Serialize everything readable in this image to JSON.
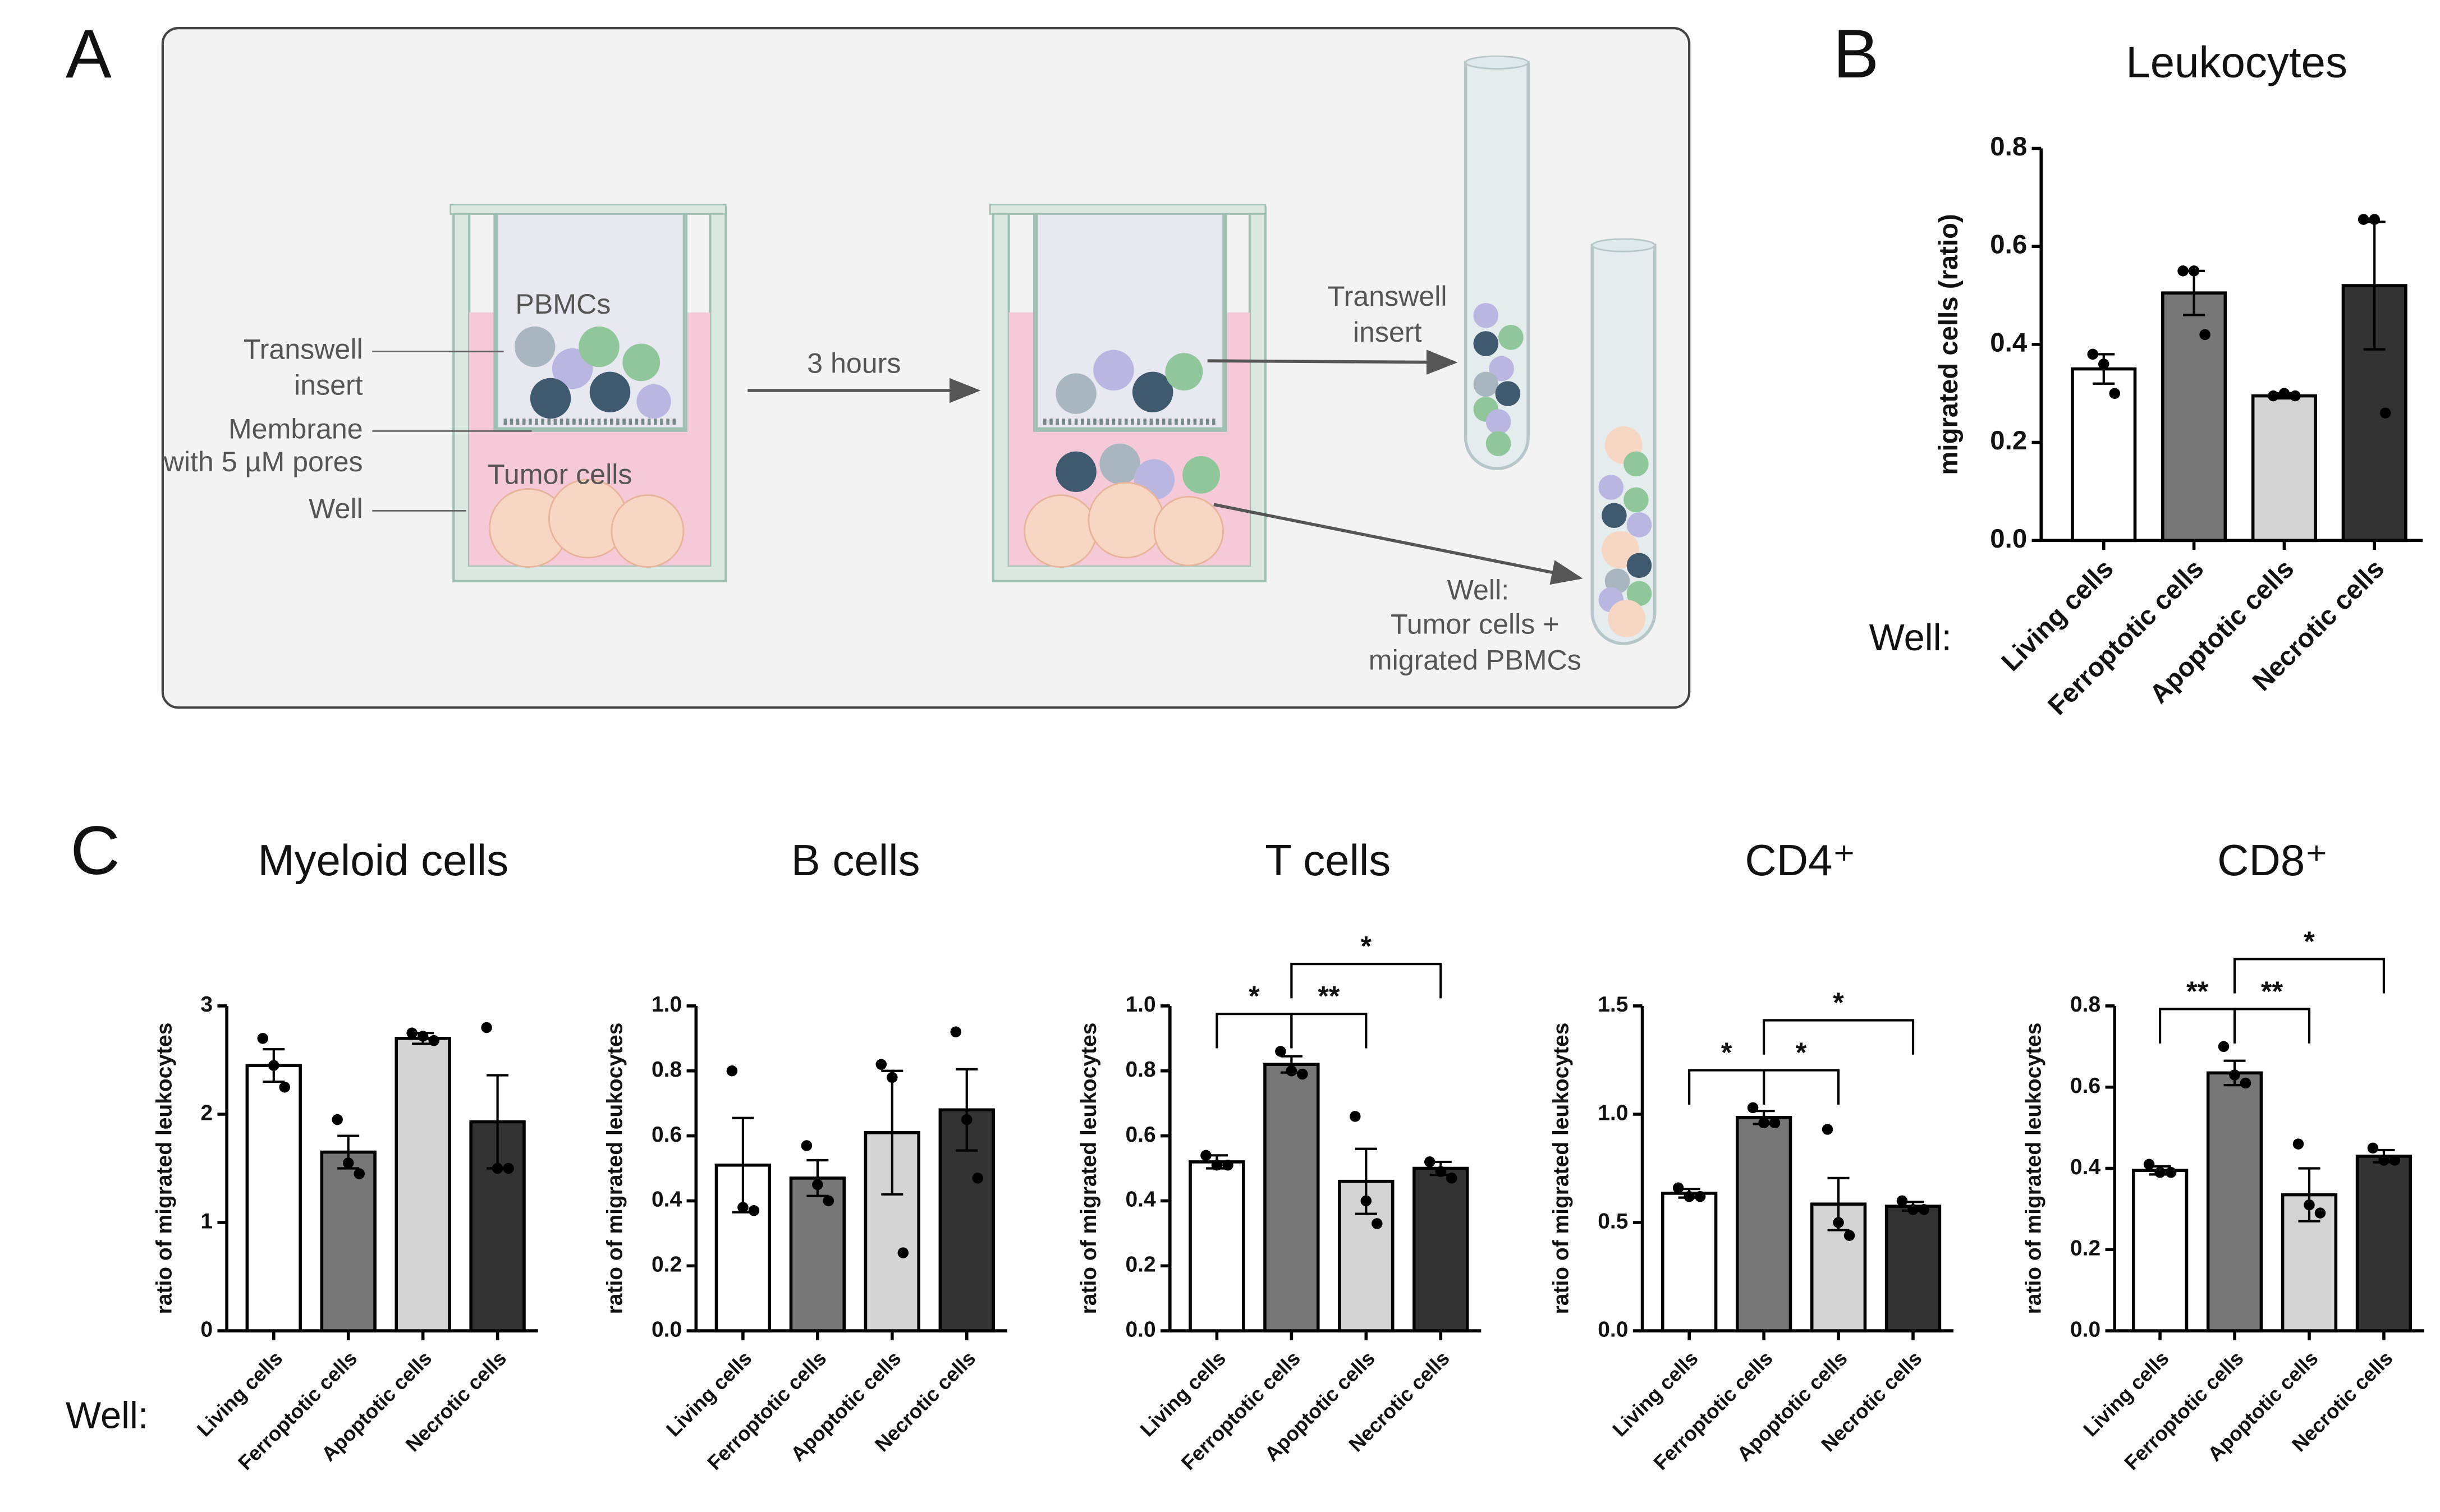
{
  "panel_labels": [
    "A",
    "B",
    "C"
  ],
  "diagram": {
    "pbmcs": "PBMCs",
    "transwell_insert": [
      "Transwell",
      "insert"
    ],
    "membrane": "Membrane",
    "pores": "with 5 µM pores",
    "tumor_cells": "Tumor cells",
    "well": "Well",
    "time": "3 hours",
    "transwell_tube": [
      "Transwell",
      "insert"
    ],
    "well_tube": [
      "Well:",
      "Tumor cells +",
      "migrated PBMCs"
    ]
  },
  "chart_data": [
    {
      "type": "bar",
      "title": "Leukocytes",
      "y_label": "migrated cells (ratio)",
      "x_label": "Well:",
      "categories": [
        "Living cells",
        "Ferroptotic cells",
        "Apoptotic cells",
        "Necrotic cells"
      ],
      "values": [
        0.35,
        0.505,
        0.295,
        0.52
      ],
      "errors": [
        0.03,
        0.045,
        0.005,
        0.13
      ],
      "points": [
        [
          0.38,
          0.36,
          0.3
        ],
        [
          0.55,
          0.55,
          0.42
        ],
        [
          0.295,
          0.3,
          0.295
        ],
        [
          0.655,
          0.655,
          0.26
        ]
      ],
      "colors": [
        "#ffffff",
        "#777777",
        "#d4d4d4",
        "#333333"
      ],
      "ylim": [
        0,
        0.8
      ],
      "yticks": [
        {
          "value": 0,
          "label": "0.0"
        },
        0.2,
        0.4,
        0.6,
        0.8
      ],
      "annotations": []
    },
    {
      "type": "bar",
      "title": "Myeloid cells",
      "y_label": "ratio of migrated leukocytes",
      "x_label": "Well:",
      "categories": [
        "Living cells",
        "Ferroptotic cells",
        "Apoptotic cells",
        "Necrotic cells"
      ],
      "values": [
        2.45,
        1.65,
        2.7,
        1.93
      ],
      "errors": [
        0.15,
        0.15,
        0.05,
        0.43
      ],
      "points": [
        [
          2.7,
          2.45,
          2.25
        ],
        [
          1.95,
          1.55,
          1.45
        ],
        [
          2.75,
          2.72,
          2.68
        ],
        [
          2.8,
          1.5,
          1.5
        ]
      ],
      "colors": [
        "#ffffff",
        "#777777",
        "#d4d4d4",
        "#333333"
      ],
      "ylim": [
        0,
        3
      ],
      "yticks": [
        0,
        1,
        2,
        3
      ],
      "annotations": []
    },
    {
      "type": "bar",
      "title": "B cells",
      "y_label": "ratio of migrated leukocytes",
      "categories": [
        "Living cells",
        "Ferroptotic cells",
        "Apoptotic cells",
        "Necrotic cells"
      ],
      "values": [
        0.51,
        0.47,
        0.61,
        0.68
      ],
      "errors": [
        0.145,
        0.055,
        0.19,
        0.125
      ],
      "points": [
        [
          0.8,
          0.38,
          0.37
        ],
        [
          0.57,
          0.45,
          0.4
        ],
        [
          0.82,
          0.78,
          0.24
        ],
        [
          0.92,
          0.65,
          0.47
        ]
      ],
      "colors": [
        "#ffffff",
        "#777777",
        "#d4d4d4",
        "#333333"
      ],
      "ylim": [
        0,
        1
      ],
      "yticks": [
        {
          "value": 0,
          "label": "0.0"
        },
        0.2,
        0.4,
        0.6,
        0.8,
        {
          "value": 1,
          "label": "1.0"
        }
      ],
      "annotations": []
    },
    {
      "type": "bar",
      "title": "T cells",
      "y_label": "ratio of migrated leukocytes",
      "categories": [
        "Living cells",
        "Ferroptotic cells",
        "Apoptotic cells",
        "Necrotic cells"
      ],
      "values": [
        0.52,
        0.82,
        0.46,
        0.5
      ],
      "errors": [
        0.02,
        0.025,
        0.1,
        0.02
      ],
      "points": [
        [
          0.54,
          0.51,
          0.51
        ],
        [
          0.86,
          0.8,
          0.79
        ],
        [
          0.66,
          0.4,
          0.33
        ],
        [
          0.52,
          0.49,
          0.47
        ]
      ],
      "colors": [
        "#ffffff",
        "#777777",
        "#d4d4d4",
        "#333333"
      ],
      "ylim": [
        0,
        1
      ],
      "yticks": [
        {
          "value": 0,
          "label": "0.0"
        },
        0.2,
        0.4,
        0.6,
        0.8,
        {
          "value": 1,
          "label": "1.0"
        }
      ],
      "annotations": [
        {
          "label": "*",
          "categories": [
            "Living cells",
            "Ferroptotic cells"
          ]
        },
        {
          "label": "**",
          "categories": [
            "Ferroptotic cells",
            "Apoptotic cells"
          ]
        },
        {
          "label": "*",
          "categories": [
            "Ferroptotic cells",
            "Necrotic cells"
          ]
        }
      ]
    },
    {
      "type": "bar",
      "title": "CD4⁺",
      "y_label": "ratio of migrated leukocytes",
      "categories": [
        "Living cells",
        "Ferroptotic cells",
        "Apoptotic cells",
        "Necrotic cells"
      ],
      "values": [
        0.635,
        0.985,
        0.585,
        0.575
      ],
      "errors": [
        0.02,
        0.03,
        0.12,
        0.02
      ],
      "points": [
        [
          0.66,
          0.62,
          0.62
        ],
        [
          1.03,
          0.96,
          0.96
        ],
        [
          0.93,
          0.5,
          0.44
        ],
        [
          0.6,
          0.56,
          0.56
        ]
      ],
      "colors": [
        "#ffffff",
        "#777777",
        "#d4d4d4",
        "#333333"
      ],
      "ylim": [
        0,
        1.5
      ],
      "yticks": [
        {
          "value": 0,
          "label": "0.0"
        },
        0.5,
        {
          "value": 1,
          "label": "1.0"
        },
        1.5
      ],
      "annotations": [
        {
          "label": "*",
          "categories": [
            "Living cells",
            "Ferroptotic cells"
          ]
        },
        {
          "label": "*",
          "categories": [
            "Ferroptotic cells",
            "Apoptotic cells"
          ]
        },
        {
          "label": "*",
          "categories": [
            "Ferroptotic cells",
            "Necrotic cells"
          ]
        }
      ]
    },
    {
      "type": "bar",
      "title": "CD8⁺",
      "y_label": "ratio of migrated leukocytes",
      "categories": [
        "Living cells",
        "Ferroptotic cells",
        "Apoptotic cells",
        "Necrotic cells"
      ],
      "values": [
        0.395,
        0.635,
        0.335,
        0.43
      ],
      "errors": [
        0.01,
        0.03,
        0.065,
        0.015
      ],
      "points": [
        [
          0.41,
          0.39,
          0.39
        ],
        [
          0.7,
          0.63,
          0.61
        ],
        [
          0.46,
          0.31,
          0.29
        ],
        [
          0.45,
          0.42,
          0.42
        ]
      ],
      "colors": [
        "#ffffff",
        "#777777",
        "#d4d4d4",
        "#333333"
      ],
      "ylim": [
        0,
        0.8
      ],
      "yticks": [
        {
          "value": 0,
          "label": "0.0"
        },
        0.2,
        0.4,
        0.6,
        0.8
      ],
      "annotations": [
        {
          "label": "**",
          "categories": [
            "Living cells",
            "Ferroptotic cells"
          ]
        },
        {
          "label": "**",
          "categories": [
            "Ferroptotic cells",
            "Apoptotic cells"
          ]
        },
        {
          "label": "*",
          "categories": [
            "Ferroptotic cells",
            "Necrotic cells"
          ]
        }
      ]
    }
  ]
}
